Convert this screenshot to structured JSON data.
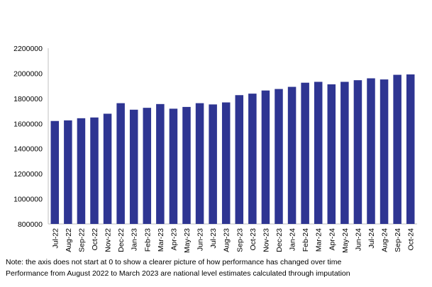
{
  "chart_data": {
    "type": "bar",
    "categories": [
      "Jul-22",
      "Aug-22",
      "Sep-22",
      "Oct-22",
      "Nov-22",
      "Dec-22",
      "Jan-23",
      "Feb-23",
      "Mar-23",
      "Apr-23",
      "May-23",
      "Jun-23",
      "Jul-23",
      "Aug-23",
      "Sep-23",
      "Oct-23",
      "Nov-23",
      "Dec-23",
      "Jan-24",
      "Feb-24",
      "Mar-24",
      "Apr-24",
      "May-24",
      "Jun-24",
      "Jul-24",
      "Aug-24",
      "Sep-24",
      "Oct-24"
    ],
    "values": [
      1620000,
      1625000,
      1642000,
      1648000,
      1678000,
      1762000,
      1710000,
      1725000,
      1755000,
      1718000,
      1732000,
      1762000,
      1752000,
      1768000,
      1826000,
      1838000,
      1863000,
      1875000,
      1892000,
      1925000,
      1932000,
      1912000,
      1932000,
      1945000,
      1960000,
      1951000,
      1988000,
      1991000
    ],
    "ylim": [
      800000,
      2200000
    ],
    "yticks": [
      800000,
      1000000,
      1200000,
      1400000,
      1600000,
      1800000,
      2000000,
      2200000
    ],
    "title": "",
    "xlabel": "",
    "ylabel": "",
    "grid": false,
    "bar_color": "#2e3592"
  },
  "notes": {
    "line1": "Note: the axis does not start at 0 to show a clearer picture of how performance has changed over time",
    "line2": "Performance from August 2022 to March 2023 are national level estimates calculated through imputation"
  }
}
